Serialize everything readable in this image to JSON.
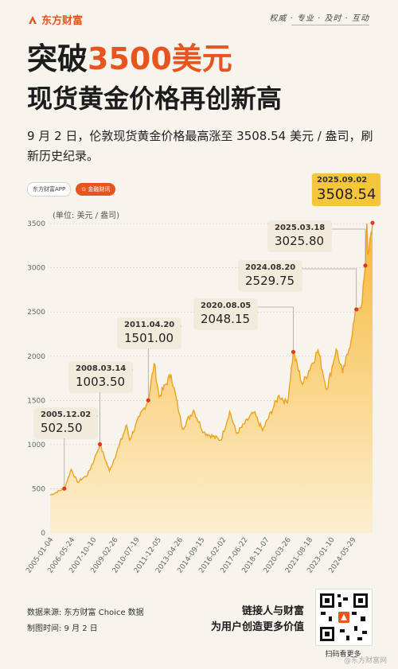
{
  "header": {
    "logo_text": "东方财富",
    "slogan": "权威 · 专业 · 及时 · 互动"
  },
  "title": {
    "line1_prefix": "突破",
    "line1_highlight": "3500美元",
    "line2": "现货黄金价格再创新高"
  },
  "description": "9 月 2 日，伦敦现货黄金价格最高涨至 3508.54 美元 / 盎司，刷新历史纪录。",
  "badges": {
    "app": "东方财富APP",
    "open": "⊙ 金融财讯"
  },
  "chart_data": {
    "type": "area",
    "ylabel": "(单位: 美元 / 盎司)",
    "ylim": [
      0,
      3600
    ],
    "yticks": [
      0,
      500,
      1000,
      1500,
      2000,
      2500,
      3000,
      3500
    ],
    "xticks": [
      "2005-01-04",
      "2006-05-24",
      "2007-10-10",
      "2009-02-26",
      "2010-07-19",
      "2011-12-05",
      "2013-04-26",
      "2014-09-15",
      "2016-02-02",
      "2017-06-22",
      "2018-11-07",
      "2020-03-26",
      "2021-08-18",
      "2023-01-10",
      "2024-05-29"
    ],
    "series": [
      {
        "values": [
          {
            "x": "2005-01-04",
            "y": 428
          },
          {
            "x": "2005-12-02",
            "y": 502.5
          },
          {
            "x": "2006-05-12",
            "y": 720
          },
          {
            "x": "2006-10-05",
            "y": 575
          },
          {
            "x": "2007-06-01",
            "y": 660
          },
          {
            "x": "2007-11-08",
            "y": 840
          },
          {
            "x": "2008-03-14",
            "y": 1003.5
          },
          {
            "x": "2008-10-24",
            "y": 700
          },
          {
            "x": "2009-06-01",
            "y": 980
          },
          {
            "x": "2009-12-02",
            "y": 1220
          },
          {
            "x": "2010-02-05",
            "y": 1050
          },
          {
            "x": "2010-10-01",
            "y": 1320
          },
          {
            "x": "2011-04-20",
            "y": 1501
          },
          {
            "x": "2011-09-06",
            "y": 1921
          },
          {
            "x": "2011-12-29",
            "y": 1540
          },
          {
            "x": "2012-10-05",
            "y": 1795
          },
          {
            "x": "2013-04-16",
            "y": 1350
          },
          {
            "x": "2013-06-28",
            "y": 1180
          },
          {
            "x": "2014-03-14",
            "y": 1390
          },
          {
            "x": "2014-11-07",
            "y": 1140
          },
          {
            "x": "2015-12-17",
            "y": 1050
          },
          {
            "x": "2016-07-06",
            "y": 1375
          },
          {
            "x": "2016-12-15",
            "y": 1125
          },
          {
            "x": "2018-01-25",
            "y": 1365
          },
          {
            "x": "2018-08-16",
            "y": 1160
          },
          {
            "x": "2019-09-04",
            "y": 1555
          },
          {
            "x": "2020-03-19",
            "y": 1470
          },
          {
            "x": "2020-08-05",
            "y": 2048.15
          },
          {
            "x": "2021-03-08",
            "y": 1680
          },
          {
            "x": "2022-03-08",
            "y": 2070
          },
          {
            "x": "2022-09-28",
            "y": 1620
          },
          {
            "x": "2023-05-04",
            "y": 2080
          },
          {
            "x": "2023-10-05",
            "y": 1810
          },
          {
            "x": "2024-03-01",
            "y": 2080
          },
          {
            "x": "2024-08-20",
            "y": 2529.75
          },
          {
            "x": "2024-12-30",
            "y": 2600
          },
          {
            "x": "2025-03-18",
            "y": 3025.8
          },
          {
            "x": "2025-04-22",
            "y": 3500
          },
          {
            "x": "2025-05-15",
            "y": 3150
          },
          {
            "x": "2025-08-01",
            "y": 3400
          },
          {
            "x": "2025-09-02",
            "y": 3508.54
          }
        ]
      }
    ],
    "annotations": [
      {
        "date": "2005.12.02",
        "value": "502.50",
        "x": "2005-12-02",
        "y": 502.5
      },
      {
        "date": "2008.03.14",
        "value": "1003.50",
        "x": "2008-03-14",
        "y": 1003.5
      },
      {
        "date": "2011.04.20",
        "value": "1501.00",
        "x": "2011-04-20",
        "y": 1501
      },
      {
        "date": "2020.08.05",
        "value": "2048.15",
        "x": "2020-08-05",
        "y": 2048.15
      },
      {
        "date": "2024.08.20",
        "value": "2529.75",
        "x": "2024-08-20",
        "y": 2529.75
      },
      {
        "date": "2025.03.18",
        "value": "3025.80",
        "x": "2025-03-18",
        "y": 3025.8
      },
      {
        "date": "2025.09.02",
        "value": "3508.54",
        "x": "2025-09-02",
        "y": 3508.54
      }
    ],
    "colors": {
      "fill_top": "#f7b93a",
      "fill_bottom": "#fcefd0",
      "line": "#efa21c",
      "marker": "#e03a1e",
      "highlight": "#f6c63a"
    }
  },
  "footer": {
    "source": "数据来源: 东方财富 Choice 数据",
    "made": "制图时间: 9 月 2 日",
    "tagline1": "链接人与财富",
    "tagline2": "为用户创造更多价值",
    "qr_label": "扫码看更多",
    "watermark": "@东方财富网"
  }
}
